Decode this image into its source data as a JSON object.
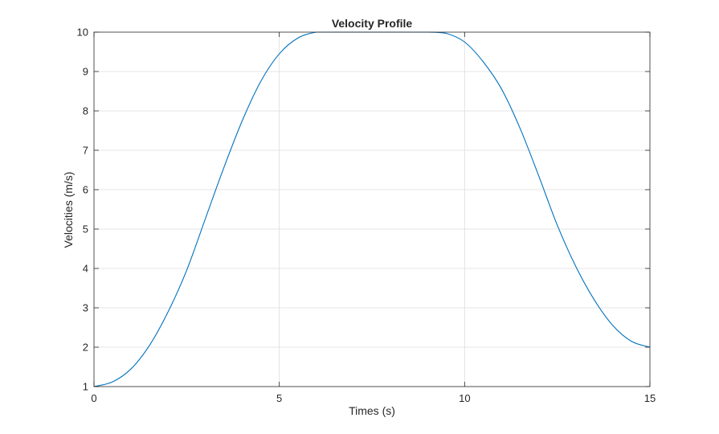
{
  "chart_data": {
    "type": "line",
    "title": "Velocity Profile",
    "xlabel": "Times (s)",
    "ylabel": "Velocities (m/s)",
    "xlim": [
      0,
      15
    ],
    "ylim": [
      1,
      10
    ],
    "xticks": [
      0,
      5,
      10,
      15
    ],
    "yticks": [
      1,
      2,
      3,
      4,
      5,
      6,
      7,
      8,
      9,
      10
    ],
    "grid": true,
    "legend": "none",
    "series": [
      {
        "color": "#0072BD",
        "x": [
          0,
          0.5,
          1,
          1.5,
          2,
          2.5,
          3,
          3.5,
          4,
          4.5,
          5,
          5.5,
          6,
          6.5,
          7,
          7.5,
          8,
          8.5,
          9,
          9.5,
          10,
          10.5,
          11,
          11.5,
          12,
          12.5,
          13,
          13.5,
          14,
          14.5,
          15
        ],
        "y": [
          1.0,
          1.12,
          1.45,
          2.05,
          2.9,
          3.95,
          5.25,
          6.55,
          7.75,
          8.75,
          9.45,
          9.85,
          10.0,
          10.0,
          10.0,
          10.0,
          10.0,
          10.0,
          10.0,
          9.97,
          9.75,
          9.25,
          8.55,
          7.55,
          6.35,
          5.1,
          4.05,
          3.2,
          2.55,
          2.15,
          2.0
        ]
      }
    ]
  }
}
